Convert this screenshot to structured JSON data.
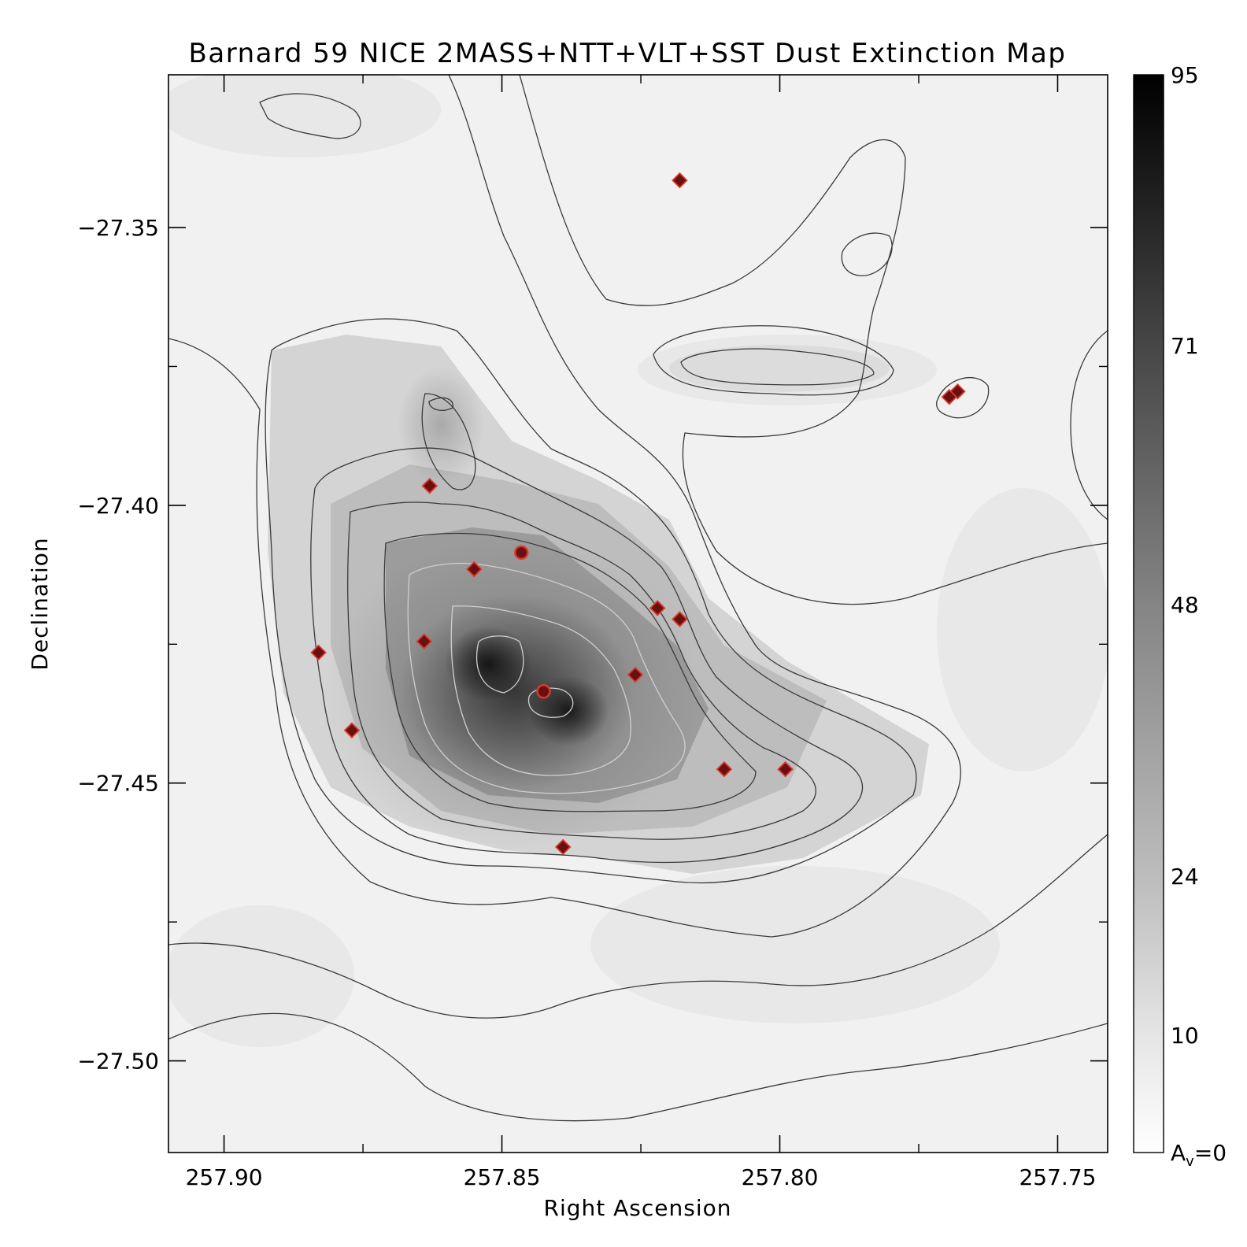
{
  "chart_data": {
    "type": "heatmap",
    "title": "Barnard 59 NICE 2MASS+NTT+VLT+SST Dust Extinction Map",
    "xlabel": "Right Ascension",
    "ylabel": "Declination",
    "x_axis": {
      "reversed": true,
      "range": [
        257.91,
        257.741
      ],
      "ticks": [
        257.9,
        257.85,
        257.8,
        257.75
      ],
      "tick_labels": [
        "257.90",
        "257.85",
        "257.80",
        "257.75"
      ],
      "minor_ticks": [
        257.875,
        257.825,
        257.775
      ]
    },
    "y_axis": {
      "range": [
        -27.5165,
        -27.3225
      ],
      "ticks": [
        -27.35,
        -27.4,
        -27.45,
        -27.5
      ],
      "tick_labels": [
        "−27.35",
        "−27.40",
        "−27.45",
        "−27.50"
      ],
      "minor_ticks": [
        -27.375,
        -27.425,
        -27.475
      ]
    },
    "colorbar": {
      "min": 0,
      "max": 95,
      "tick_values": [
        0,
        10,
        24,
        48,
        71,
        95
      ],
      "tick_labels": [
        "95",
        "71",
        "48",
        "24",
        "10"
      ],
      "zero_label_main": "A",
      "zero_label_sub": "v",
      "zero_label_rest": "=0",
      "colormap": "white-to-black"
    },
    "extinction_peaks": [
      {
        "ra": 257.8525,
        "dec": -27.4285,
        "av": 95
      },
      {
        "ra": 257.838,
        "dec": -27.437,
        "av": 88
      }
    ],
    "markers_diamond": [
      {
        "ra": 257.818,
        "dec": -27.3415
      },
      {
        "ra": 257.863,
        "dec": -27.3965
      },
      {
        "ra": 257.855,
        "dec": -27.4115
      },
      {
        "ra": 257.864,
        "dec": -27.4245
      },
      {
        "ra": 257.883,
        "dec": -27.4265
      },
      {
        "ra": 257.877,
        "dec": -27.4405
      },
      {
        "ra": 257.822,
        "dec": -27.4185
      },
      {
        "ra": 257.818,
        "dec": -27.4205
      },
      {
        "ra": 257.826,
        "dec": -27.4305
      },
      {
        "ra": 257.81,
        "dec": -27.4475
      },
      {
        "ra": 257.799,
        "dec": -27.4475
      },
      {
        "ra": 257.839,
        "dec": -27.4615
      },
      {
        "ra": 257.768,
        "dec": -27.3795
      },
      {
        "ra": 257.7695,
        "dec": -27.3805
      }
    ],
    "markers_circle": [
      {
        "ra": 257.8465,
        "dec": -27.4085
      },
      {
        "ra": 257.8425,
        "dec": -27.4335
      }
    ],
    "colors": {
      "marker_fill": "#6b0f0f",
      "marker_edge": "#d83a2e",
      "contour_dark": "#3a3a3a",
      "contour_light": "#cfcfcf"
    }
  }
}
